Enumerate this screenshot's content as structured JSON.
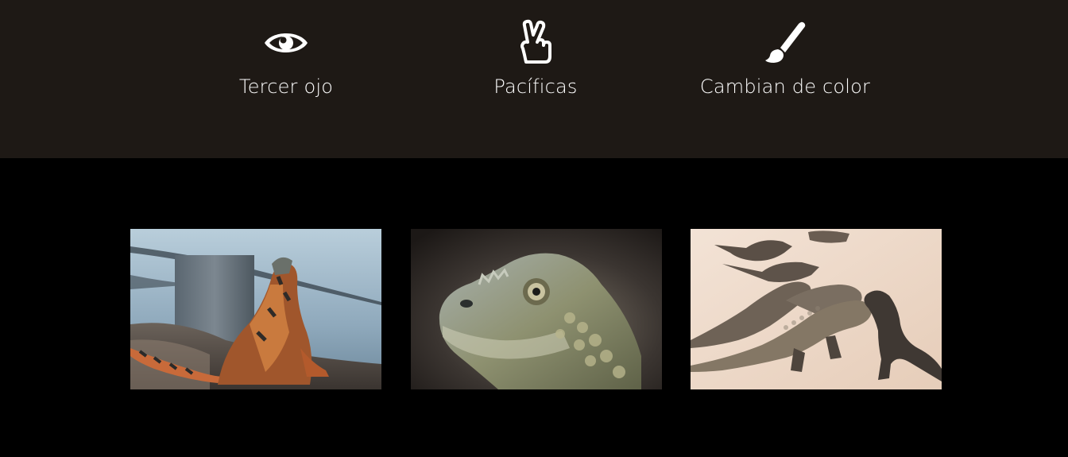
{
  "features": {
    "items": [
      {
        "label": "Tercer ojo",
        "icon": "eye-icon"
      },
      {
        "label": "Pacíficas",
        "icon": "peace-hand-icon"
      },
      {
        "label": "Cambian de color",
        "icon": "paintbrush-icon"
      }
    ]
  },
  "gallery": {
    "photos": [
      {
        "subject": "iguana-on-rocks-by-water"
      },
      {
        "subject": "iguana-head-closeup"
      },
      {
        "subject": "iguanas-on-sand"
      }
    ]
  },
  "colors": {
    "features_background": "#1e1915",
    "gallery_background": "#000000",
    "text": "#ffffff"
  }
}
